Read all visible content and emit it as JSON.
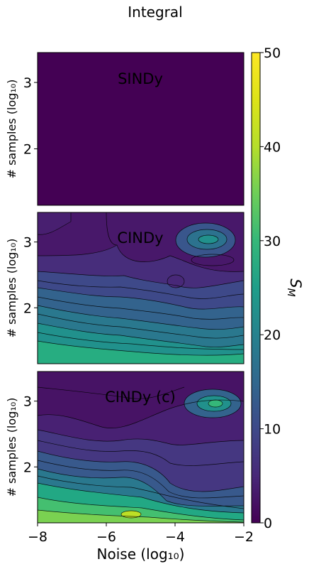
{
  "figure_title": "Integral",
  "chart_data": {
    "type": "heatmap",
    "title": "Integral",
    "xlabel": "Noise (log₁₀)",
    "ylabel": "# samples (log₁₀)",
    "xlim": [
      -8,
      -2
    ],
    "ylim": [
      1.15,
      3.45
    ],
    "x_ticks": [
      -8,
      -6,
      -4,
      -2
    ],
    "x_tick_labels": [
      "−8",
      "−6",
      "−4",
      "−2"
    ],
    "y_ticks": [
      2,
      3
    ],
    "y_tick_labels": [
      "2",
      "3"
    ],
    "colormap": "viridis",
    "colorbar": {
      "label": "S_M",
      "range": [
        0,
        50
      ],
      "ticks": [
        0,
        10,
        20,
        30,
        40,
        50
      ]
    },
    "panels": [
      {
        "name": "SINDy",
        "note": "uniform field at the minimum of the scale",
        "approx_values": {
          "min": 0,
          "max": 1
        }
      },
      {
        "name": "CINDy",
        "approx_values": {
          "low_noise_high_samples": 2,
          "high_noise_high_samples": 16,
          "low_samples": 25,
          "peak_near": {
            "x": -3,
            "y": 3.0,
            "value": 22
          }
        }
      },
      {
        "name": "CINDy (c)",
        "approx_values": {
          "low_noise_high_samples": 3,
          "high_noise_high_samples": 14,
          "low_samples": 36,
          "peak_near": {
            "x": -3,
            "y": 2.9,
            "value": 25
          }
        }
      }
    ]
  }
}
